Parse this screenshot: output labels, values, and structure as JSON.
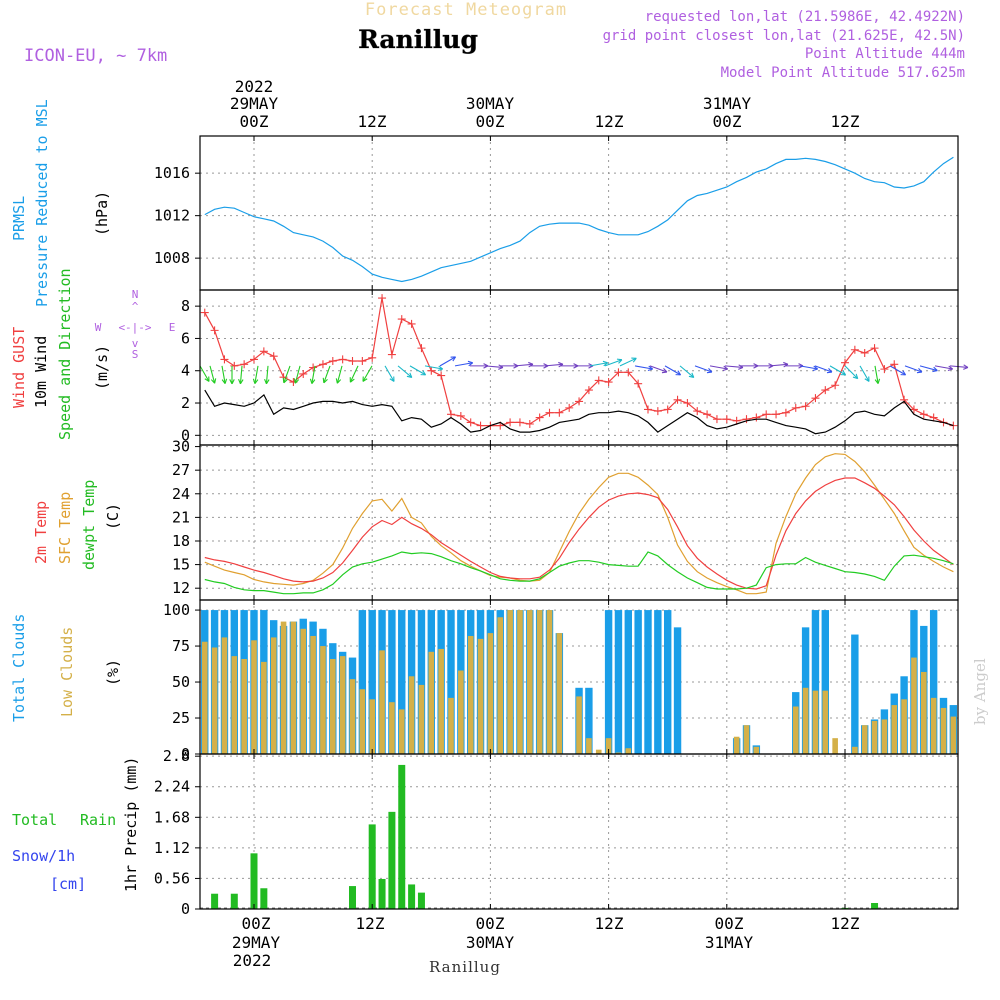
{
  "header": {
    "forecast_title": "Forecast Meteogram",
    "station": "Ranillug",
    "model": "ICON-EU, ~ 7km",
    "requested": "requested lon,lat (21.5986E, 42.4922N)",
    "grid_point": "grid point closest lon,lat (21.625E, 42.5N)",
    "point_alt": "Point Altitude 444m",
    "model_alt": "Model Point Altitude 517.625m",
    "footer_station": "Ranillug",
    "credit": "by Angel"
  },
  "time_axis": {
    "ticks": [
      "00Z",
      "12Z",
      "00Z",
      "12Z",
      "00Z",
      "12Z"
    ],
    "dates": [
      "29MAY",
      "30MAY",
      "31MAY"
    ],
    "year": "2022"
  },
  "compass": {
    "n": "N",
    "s": "S",
    "w": "W",
    "e": "E",
    "arrow_h": "<-|->",
    "arrow_up": "^",
    "arrow_down": "v"
  },
  "labels": {
    "prmsl_a": "PRMSL",
    "prmsl_b": "Pressure Reduced to MSL",
    "prmsl_unit": "(hPa)",
    "wind_gust": "Wind GUST",
    "wind_10m": "10m Wind",
    "wind_dir": "Speed and Direction",
    "wind_unit": "(m/s)",
    "temp_2m": "2m Temp",
    "temp_sfc": "SFC Temp",
    "temp_dew": "dewpt Temp",
    "temp_unit": "(C)",
    "cl_total": "Total Clouds",
    "cl_low": "Low Clouds",
    "cl_unit": "(%)",
    "rain_total": "Total",
    "rain_rain": "Rain",
    "rain_snow": "Snow/1h",
    "rain_cm": "[cm]",
    "rain_unit": "1hr Precip (mm)"
  },
  "colors": {
    "pressure": "#1a9ee8",
    "gust": "#f04040",
    "wind": "#000000",
    "sfc": "#e0a030",
    "temp2m": "#f04040",
    "dew": "#22cc22",
    "total_clouds": "#1a9ee8",
    "low_clouds": "#d4b048",
    "rain": "#22bb22",
    "purple": "#b060e0",
    "cyan_label": "#1a9ee8",
    "snow_label": "#3344ee"
  },
  "chart_data": [
    {
      "type": "line",
      "name": "prmsl",
      "ylabel": "(hPa)",
      "ylim": [
        1005,
        1019.5
      ],
      "yticks": [
        1008,
        1012,
        1016
      ],
      "x_hours": [
        -5,
        -4,
        -3,
        -2,
        -1,
        0,
        1,
        2,
        3,
        4,
        5,
        6,
        7,
        8,
        9,
        10,
        11,
        12,
        13,
        14,
        15,
        16,
        17,
        18,
        19,
        20,
        21,
        22,
        23,
        24,
        25,
        26,
        27,
        28,
        29,
        30,
        31,
        32,
        33,
        34,
        35,
        36,
        37,
        38,
        39,
        40,
        41,
        42,
        43,
        44,
        45,
        46,
        47,
        48,
        49,
        50,
        51,
        52,
        53,
        54,
        55,
        56,
        57,
        58,
        59,
        60,
        61,
        62,
        63,
        64,
        65,
        66,
        67,
        68,
        69,
        70,
        71,
        72,
        73,
        74,
        75,
        76,
        77,
        78
      ],
      "y": [
        1012.1,
        1012.6,
        1012.8,
        1012.7,
        1012.3,
        1011.9,
        1011.7,
        1011.5,
        1011.0,
        1010.4,
        1010.2,
        1010.0,
        1009.6,
        1009.0,
        1008.2,
        1007.8,
        1007.2,
        1006.5,
        1006.2,
        1006.0,
        1005.8,
        1006.0,
        1006.3,
        1006.7,
        1007.1,
        1007.3,
        1007.5,
        1007.7,
        1008.1,
        1008.5,
        1008.9,
        1009.2,
        1009.6,
        1010.4,
        1011.0,
        1011.2,
        1011.3,
        1011.3,
        1011.3,
        1011.1,
        1010.7,
        1010.4,
        1010.2,
        1010.2,
        1010.2,
        1010.5,
        1011.0,
        1011.6,
        1012.5,
        1013.4,
        1013.9,
        1014.1,
        1014.4,
        1014.7,
        1015.2,
        1015.6,
        1016.1,
        1016.4,
        1016.9,
        1017.3,
        1017.3,
        1017.4,
        1017.3,
        1017.1,
        1016.8,
        1016.4,
        1016.0,
        1015.5,
        1015.2,
        1015.1,
        1014.7,
        1014.6,
        1014.8,
        1015.2,
        1016.1,
        1016.9,
        1017.5,
        1017.8,
        1018.0,
        1018.1,
        1018.2,
        1018.3,
        1018.4,
        1018.5
      ]
    },
    {
      "type": "line",
      "name": "wind",
      "ylabel": "(m/s)",
      "ylim": [
        -0.6,
        9.0
      ],
      "yticks": [
        0,
        2,
        4,
        6,
        8
      ],
      "gust_x": [
        -5,
        -4,
        -3,
        -2,
        -1,
        0,
        1,
        2,
        3,
        4,
        5,
        6,
        7,
        8,
        9,
        10,
        11,
        12,
        13,
        14,
        15,
        16,
        17,
        18,
        19,
        20,
        21,
        22,
        23,
        24,
        25,
        26,
        27,
        28,
        29,
        30,
        31,
        32,
        33,
        34,
        35,
        36,
        37,
        38,
        39,
        40,
        41,
        42,
        43,
        44,
        45,
        46,
        47,
        48,
        49,
        50,
        51,
        52,
        53,
        54,
        55,
        56,
        57,
        58,
        59,
        60,
        61,
        62,
        63,
        64,
        65,
        66,
        67,
        68,
        69,
        70,
        71,
        72,
        73,
        74,
        75,
        76,
        77,
        78
      ],
      "gust_y": [
        7.6,
        6.5,
        4.7,
        4.3,
        4.4,
        4.7,
        5.2,
        4.9,
        3.6,
        3.3,
        3.8,
        4.2,
        4.4,
        4.6,
        4.7,
        4.6,
        4.6,
        4.8,
        8.5,
        5.0,
        7.2,
        6.9,
        5.4,
        4.0,
        3.7,
        1.3,
        1.2,
        0.8,
        0.6,
        0.6,
        0.6,
        0.8,
        0.8,
        0.7,
        1.1,
        1.4,
        1.4,
        1.7,
        2.1,
        2.8,
        3.4,
        3.3,
        3.9,
        3.9,
        3.2,
        1.6,
        1.5,
        1.6,
        2.2,
        2.0,
        1.5,
        1.3,
        1.0,
        1.0,
        0.9,
        1.0,
        1.1,
        1.3,
        1.3,
        1.4,
        1.7,
        1.8,
        2.3,
        2.8,
        3.1,
        4.5,
        5.3,
        5.1,
        5.4,
        4.1,
        4.4,
        2.2,
        1.6,
        1.3,
        1.1,
        0.8,
        0.6,
        0.6,
        0.6,
        0.6,
        0.6,
        0.6,
        0.6,
        0.6
      ],
      "wind_x": [
        -5,
        -4,
        -3,
        -2,
        -1,
        0,
        1,
        2,
        3,
        4,
        5,
        6,
        7,
        8,
        9,
        10,
        11,
        12,
        13,
        14,
        15,
        16,
        17,
        18,
        19,
        20,
        21,
        22,
        23,
        24,
        25,
        26,
        27,
        28,
        29,
        30,
        31,
        32,
        33,
        34,
        35,
        36,
        37,
        38,
        39,
        40,
        41,
        42,
        43,
        44,
        45,
        46,
        47,
        48,
        49,
        50,
        51,
        52,
        53,
        54,
        55,
        56,
        57,
        58,
        59,
        60,
        61,
        62,
        63,
        64,
        65,
        66,
        67,
        68,
        69,
        70,
        71,
        72,
        73,
        74,
        75,
        76,
        77,
        78
      ],
      "wind_y": [
        2.8,
        1.8,
        2.0,
        1.9,
        1.8,
        2.0,
        2.5,
        1.3,
        1.7,
        1.6,
        1.8,
        2.0,
        2.1,
        2.1,
        2.0,
        2.1,
        1.9,
        1.8,
        1.9,
        1.8,
        0.9,
        1.1,
        1.0,
        0.5,
        0.7,
        1.1,
        0.7,
        0.2,
        0.3,
        0.6,
        0.8,
        0.4,
        0.2,
        0.2,
        0.3,
        0.5,
        0.8,
        0.9,
        1.0,
        1.3,
        1.4,
        1.4,
        1.5,
        1.4,
        1.2,
        0.8,
        0.2,
        0.6,
        1.0,
        1.4,
        1.1,
        0.6,
        0.4,
        0.5,
        0.7,
        0.9,
        1.0,
        1.0,
        0.8,
        0.6,
        0.5,
        0.4,
        0.1,
        0.2,
        0.5,
        0.9,
        1.4,
        1.5,
        1.3,
        1.2,
        1.7,
        2.1,
        1.3,
        1.0,
        0.9,
        0.8,
        0.6,
        0.6,
        0.6,
        0.6,
        0.6,
        0.6,
        0.6,
        0.6
      ]
    },
    {
      "type": "line",
      "name": "temperature",
      "ylabel": "(C)",
      "ylim": [
        10.5,
        30.2
      ],
      "yticks": [
        12,
        15,
        18,
        21,
        24,
        27,
        30
      ],
      "x_hours": [
        -5,
        -4,
        -3,
        -2,
        -1,
        0,
        1,
        2,
        3,
        4,
        5,
        6,
        7,
        8,
        9,
        10,
        11,
        12,
        13,
        14,
        15,
        16,
        17,
        18,
        19,
        20,
        21,
        22,
        23,
        24,
        25,
        26,
        27,
        28,
        29,
        30,
        31,
        32,
        33,
        34,
        35,
        36,
        37,
        38,
        39,
        40,
        41,
        42,
        43,
        44,
        45,
        46,
        47,
        48,
        49,
        50,
        51,
        52,
        53,
        54,
        55,
        56,
        57,
        58,
        59,
        60,
        61,
        62,
        63,
        64,
        65,
        66,
        67,
        68,
        69,
        70,
        71,
        72,
        73,
        74,
        75,
        76,
        77,
        78
      ],
      "t2m": [
        15.9,
        15.6,
        15.4,
        15.1,
        14.7,
        14.3,
        14.0,
        13.6,
        13.2,
        12.9,
        12.8,
        12.9,
        13.3,
        14.0,
        15.2,
        16.8,
        18.5,
        19.8,
        20.6,
        20.1,
        21.0,
        20.2,
        19.6,
        18.8,
        17.8,
        17.0,
        16.2,
        15.4,
        14.7,
        14.0,
        13.5,
        13.3,
        13.2,
        13.2,
        13.4,
        14.3,
        15.8,
        17.8,
        19.5,
        21.0,
        22.3,
        23.2,
        23.7,
        24.0,
        24.1,
        23.9,
        23.5,
        22.0,
        19.8,
        17.4,
        15.8,
        14.7,
        13.8,
        13.0,
        12.4,
        12.0,
        11.9,
        12.3,
        16.2,
        19.3,
        21.5,
        23.1,
        24.3,
        25.1,
        25.7,
        26.0,
        26.0,
        25.4,
        24.7,
        23.7,
        22.6,
        21.1,
        19.4,
        18.0,
        16.8,
        15.9,
        15.0,
        14.4,
        13.9,
        13.5,
        13.2,
        13.0,
        12.9,
        12.8
      ],
      "sfc": [
        15.3,
        14.8,
        14.3,
        14.0,
        13.7,
        13.1,
        12.8,
        12.6,
        12.5,
        12.4,
        12.6,
        13.0,
        13.9,
        15.0,
        17.1,
        19.6,
        21.5,
        23.1,
        23.3,
        21.8,
        23.4,
        21.0,
        20.3,
        18.6,
        17.4,
        16.5,
        15.5,
        14.8,
        14.2,
        13.6,
        13.4,
        13.3,
        13.0,
        12.9,
        13.0,
        14.0,
        16.6,
        19.2,
        21.5,
        23.3,
        24.8,
        26.1,
        26.6,
        26.6,
        26.1,
        25.1,
        23.9,
        21.0,
        17.5,
        15.4,
        14.1,
        13.3,
        12.7,
        12.2,
        11.8,
        11.3,
        11.3,
        11.5,
        17.7,
        21.1,
        24.0,
        26.0,
        27.7,
        28.7,
        29.1,
        29.0,
        28.1,
        26.8,
        25.1,
        23.3,
        21.5,
        19.3,
        17.2,
        16.2,
        15.4,
        14.7,
        14.1,
        13.6,
        13.0,
        12.6,
        12.4,
        12.3,
        12.3,
        12.3
      ],
      "dew": [
        13.1,
        12.8,
        12.6,
        12.1,
        11.8,
        11.7,
        11.7,
        11.5,
        11.3,
        11.3,
        11.4,
        11.4,
        11.8,
        12.5,
        13.7,
        14.7,
        15.1,
        15.3,
        15.7,
        16.1,
        16.6,
        16.4,
        16.5,
        16.4,
        16.0,
        15.5,
        15.1,
        14.6,
        14.2,
        13.7,
        13.2,
        13.0,
        12.9,
        12.9,
        13.2,
        14.0,
        14.8,
        15.2,
        15.5,
        15.5,
        15.3,
        15.0,
        14.9,
        14.8,
        14.8,
        16.6,
        16.1,
        15.0,
        14.1,
        13.3,
        12.7,
        12.1,
        11.9,
        11.9,
        11.9,
        12.0,
        12.4,
        14.6,
        15.0,
        15.1,
        15.1,
        15.9,
        15.3,
        14.9,
        14.5,
        14.1,
        14.0,
        13.8,
        13.5,
        13.0,
        14.8,
        16.1,
        16.2,
        16.0,
        15.8,
        15.5,
        15.1,
        14.8,
        14.4,
        14.0,
        13.7,
        13.5,
        13.3,
        13.2
      ]
    },
    {
      "type": "bar",
      "name": "clouds",
      "ylabel": "(%)",
      "ylim": [
        0,
        107
      ],
      "yticks": [
        0,
        25,
        50,
        75,
        100
      ],
      "x_hours": [
        -5,
        -4,
        -3,
        -2,
        -1,
        0,
        1,
        2,
        3,
        4,
        5,
        6,
        7,
        8,
        9,
        10,
        11,
        12,
        13,
        14,
        15,
        16,
        17,
        18,
        19,
        20,
        21,
        22,
        23,
        24,
        25,
        26,
        27,
        28,
        29,
        30,
        31,
        32,
        33,
        34,
        35,
        36,
        37,
        38,
        39,
        40,
        41,
        42,
        43,
        44,
        45,
        46,
        47,
        48,
        49,
        50,
        51,
        52,
        53,
        54,
        55,
        56,
        57,
        58,
        59,
        60,
        61,
        62,
        63,
        64,
        65,
        66,
        67,
        68,
        69,
        70,
        71,
        72,
        73,
        74,
        75,
        76,
        77,
        78
      ],
      "total": [
        100,
        100,
        100,
        100,
        100,
        100,
        100,
        93,
        89,
        92,
        94,
        92,
        87,
        77,
        71,
        67,
        100,
        100,
        100,
        100,
        100,
        100,
        100,
        100,
        100,
        100,
        100,
        100,
        100,
        100,
        100,
        100,
        100,
        100,
        100,
        100,
        84,
        0,
        46,
        46,
        0,
        100,
        100,
        100,
        100,
        100,
        100,
        100,
        88,
        0,
        0,
        0,
        0,
        0,
        11,
        20,
        6,
        0,
        0,
        0,
        43,
        88,
        100,
        100,
        0,
        0,
        83,
        20,
        24,
        31,
        42,
        54,
        100,
        89,
        100,
        39,
        34,
        0,
        100,
        100,
        100,
        100,
        100,
        87
      ],
      "low": [
        78,
        74,
        81,
        68,
        66,
        79,
        64,
        81,
        92,
        92,
        87,
        82,
        75,
        66,
        68,
        52,
        45,
        38,
        72,
        36,
        31,
        54,
        48,
        71,
        73,
        39,
        58,
        82,
        80,
        84,
        95,
        100,
        100,
        100,
        100,
        100,
        84,
        0,
        40,
        11,
        3,
        11,
        1,
        4,
        0,
        0,
        0,
        0,
        0,
        0,
        0,
        0,
        0,
        0,
        12,
        20,
        5,
        0,
        0,
        0,
        33,
        46,
        44,
        44,
        11,
        0,
        5,
        20,
        23,
        24,
        34,
        38,
        67,
        57,
        39,
        32,
        26,
        0,
        64,
        23,
        0,
        0,
        0,
        22
      ]
    },
    {
      "type": "bar",
      "name": "precipitation",
      "ylabel": "1hr Precip (mm)",
      "ylim": [
        0,
        2.84
      ],
      "yticks": [
        0,
        0.56,
        1.12,
        1.68,
        2.24,
        2.8
      ],
      "ytick_labels": [
        "0",
        "0.56",
        "1.12",
        "1.68",
        "2.24",
        "2.8"
      ],
      "x_hours": [
        -4,
        -2,
        0,
        1,
        10,
        12,
        13,
        14,
        15,
        16,
        17,
        60,
        63
      ],
      "values": [
        0.28,
        0.28,
        1.02,
        0.38,
        0.42,
        1.55,
        0.55,
        1.78,
        2.64,
        0.45,
        0.3,
        0.02,
        0.11
      ]
    }
  ]
}
